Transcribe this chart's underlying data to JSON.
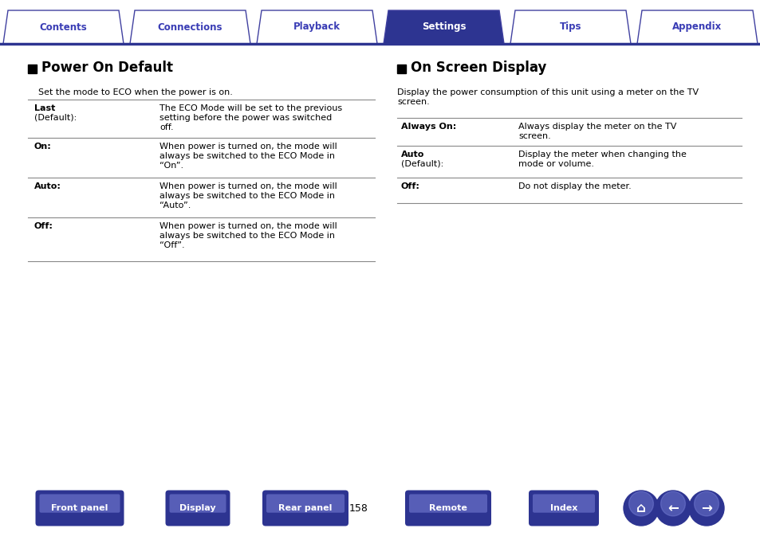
{
  "bg_color": "#ffffff",
  "tab_labels": [
    "Contents",
    "Connections",
    "Playback",
    "Settings",
    "Tips",
    "Appendix"
  ],
  "active_tab": 3,
  "tab_color_active": "#2d3491",
  "tab_color_inactive": "#ffffff",
  "tab_border_color": "#4040a0",
  "tab_text_color_active": "#ffffff",
  "tab_text_color_inactive": "#3a3db5",
  "section1_title": "Power On Default",
  "section1_subtitle": "Set the mode to ECO when the power is on.",
  "section1_rows": [
    {
      "label_line1": "Last",
      "label_line2": "(Default):",
      "desc_lines": [
        "The ECO Mode will be set to the previous",
        "setting before the power was switched",
        "off."
      ]
    },
    {
      "label_line1": "On:",
      "label_line2": "",
      "desc_lines": [
        "When power is turned on, the mode will",
        "always be switched to the ECO Mode in",
        "“On”."
      ]
    },
    {
      "label_line1": "Auto:",
      "label_line2": "",
      "desc_lines": [
        "When power is turned on, the mode will",
        "always be switched to the ECO Mode in",
        "“Auto”."
      ]
    },
    {
      "label_line1": "Off:",
      "label_line2": "",
      "desc_lines": [
        "When power is turned on, the mode will",
        "always be switched to the ECO Mode in",
        "“Off”."
      ]
    }
  ],
  "section2_title": "On Screen Display",
  "section2_subtitle_lines": [
    "Display the power consumption of this unit using a meter on the TV",
    "screen."
  ],
  "section2_rows": [
    {
      "label_line1": "Always On:",
      "label_line2": "",
      "desc_lines": [
        "Always display the meter on the TV",
        "screen."
      ]
    },
    {
      "label_line1": "Auto",
      "label_line2": "(Default):",
      "desc_lines": [
        "Display the meter when changing the",
        "mode or volume."
      ]
    },
    {
      "label_line1": "Off:",
      "label_line2": "",
      "desc_lines": [
        "Do not display the meter."
      ]
    }
  ],
  "bottom_buttons": [
    "Front panel",
    "Display",
    "Rear panel",
    "Remote",
    "Index"
  ],
  "page_number": "158",
  "button_color_dark": "#2d3491",
  "button_color_mid": "#4a52c0",
  "button_color_light": "#7a82d8",
  "button_text_color": "#ffffff",
  "divider_color": "#2d3491",
  "table_line_color": "#888888"
}
